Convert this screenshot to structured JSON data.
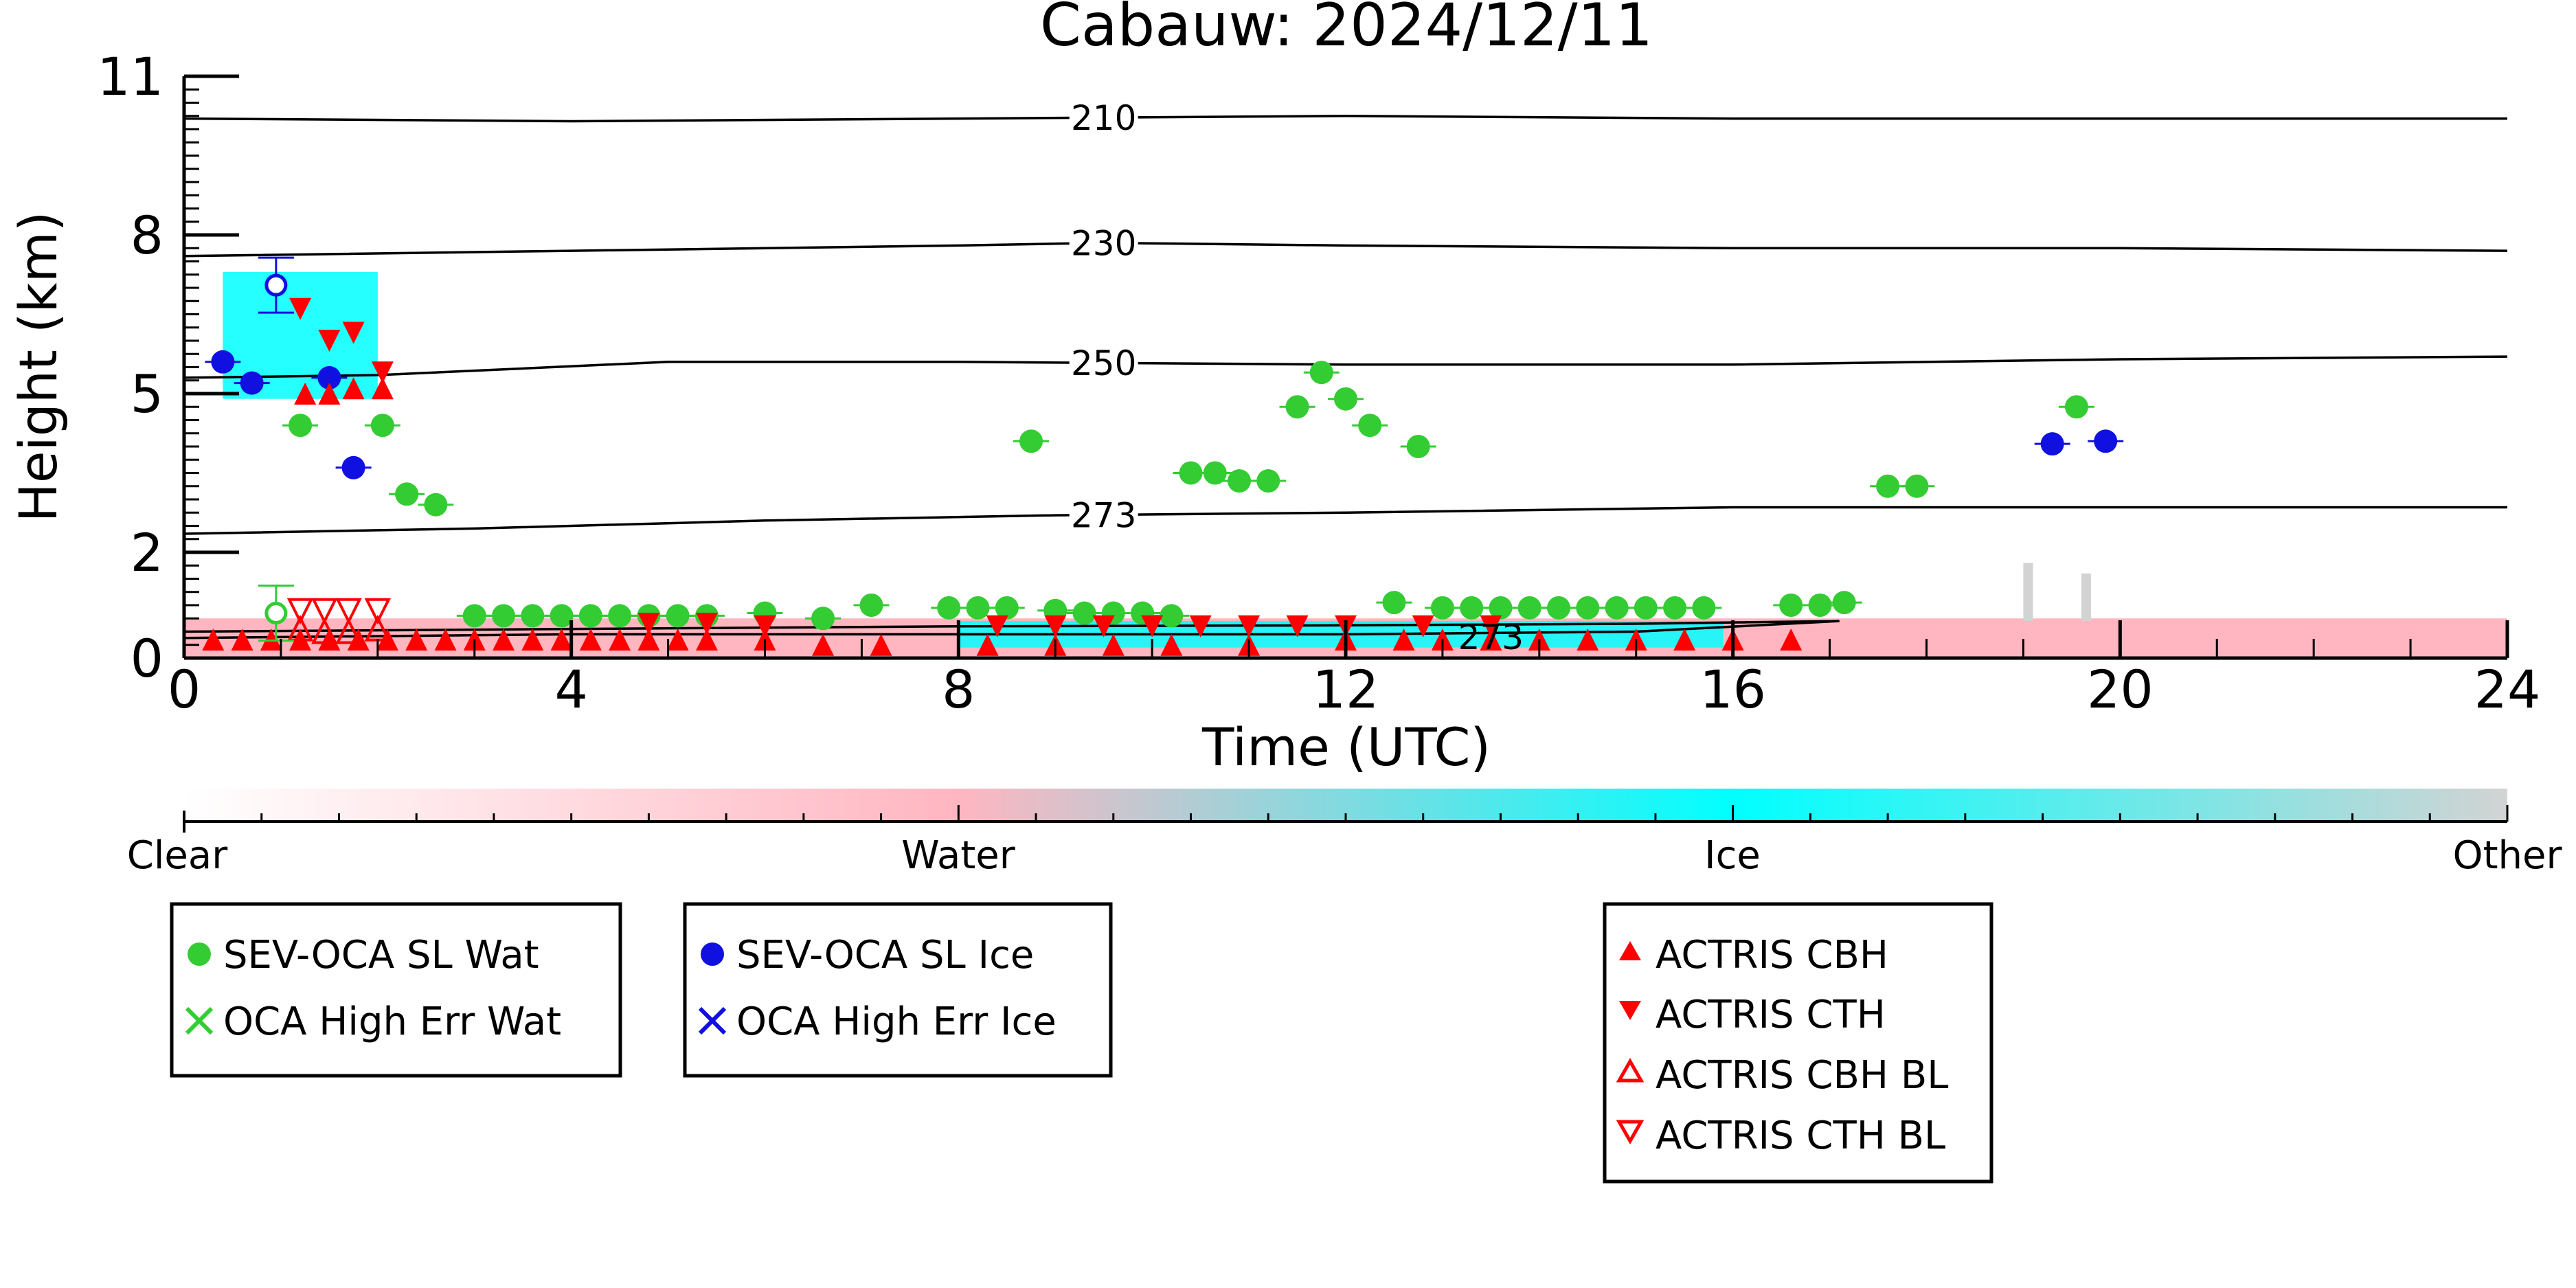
{
  "chart_data": {
    "type": "scatter",
    "title": "Cabauw: 2024/12/11",
    "xlabel": "Time (UTC)",
    "ylabel": "Height (km)",
    "xlim": [
      0,
      24
    ],
    "ylim": [
      0,
      11
    ],
    "xticks": [
      "0",
      "4",
      "8",
      "12",
      "16",
      "20",
      "24"
    ],
    "xtick_values": [
      0,
      4,
      8,
      12,
      16,
      20,
      24
    ],
    "yticks": [
      "0",
      "2",
      "5",
      "8",
      "11"
    ],
    "ytick_values": [
      0,
      2,
      5,
      8,
      11
    ],
    "contours": [
      {
        "label": "210",
        "points": [
          [
            0,
            10.2
          ],
          [
            4,
            10.15
          ],
          [
            8,
            10.2
          ],
          [
            12,
            10.25
          ],
          [
            16,
            10.2
          ],
          [
            20,
            10.2
          ],
          [
            24,
            10.2
          ]
        ]
      },
      {
        "label": "230",
        "points": [
          [
            0,
            7.6
          ],
          [
            4,
            7.7
          ],
          [
            8,
            7.8
          ],
          [
            9.5,
            7.85
          ],
          [
            12,
            7.8
          ],
          [
            16,
            7.75
          ],
          [
            20,
            7.75
          ],
          [
            24,
            7.7
          ]
        ]
      },
      {
        "label": "250",
        "points": [
          [
            0,
            5.3
          ],
          [
            2,
            5.35
          ],
          [
            5,
            5.6
          ],
          [
            8,
            5.6
          ],
          [
            12,
            5.55
          ],
          [
            16,
            5.55
          ],
          [
            20,
            5.65
          ],
          [
            24,
            5.7
          ]
        ]
      },
      {
        "label": "273",
        "points": [
          [
            0,
            2.35
          ],
          [
            3,
            2.45
          ],
          [
            6,
            2.6
          ],
          [
            9,
            2.7
          ],
          [
            12,
            2.75
          ],
          [
            16,
            2.85
          ],
          [
            20,
            2.85
          ],
          [
            24,
            2.85
          ]
        ]
      },
      {
        "label": "273",
        "points": [
          [
            0,
            0.5
          ],
          [
            4,
            0.55
          ],
          [
            8,
            0.6
          ],
          [
            12,
            0.62
          ],
          [
            15,
            0.65
          ],
          [
            17.1,
            0.7
          ],
          [
            15,
            0.5
          ],
          [
            12,
            0.45
          ],
          [
            8,
            0.45
          ],
          [
            4,
            0.45
          ],
          [
            0,
            0.38
          ]
        ]
      }
    ],
    "classification_bands": [
      {
        "class": "Water",
        "x0": 0,
        "x1": 24,
        "y0": 0,
        "y1": 0.75
      },
      {
        "class": "Ice",
        "x0": 8,
        "x1": 15.9,
        "y0": 0.2,
        "y1": 0.7
      },
      {
        "class": "Ice",
        "x0": 0.4,
        "x1": 2,
        "y0": 4.9,
        "y1": 7.3
      },
      {
        "class": "Other",
        "x0": 19.0,
        "x1": 19.1,
        "y0": 0.7,
        "y1": 1.8
      },
      {
        "class": "Other",
        "x0": 19.6,
        "x1": 19.7,
        "y0": 0.7,
        "y1": 1.6
      }
    ],
    "series": [
      {
        "name": "SEV-OCA SL Wat",
        "marker": "filled-circle",
        "color": "#33cc33",
        "points": [
          [
            1.2,
            4.4
          ],
          [
            2.05,
            4.4
          ],
          [
            2.3,
            3.1
          ],
          [
            2.6,
            2.9
          ],
          [
            8.75,
            4.1
          ],
          [
            10.4,
            3.5
          ],
          [
            10.65,
            3.5
          ],
          [
            10.9,
            3.35
          ],
          [
            11.2,
            3.35
          ],
          [
            11.5,
            4.75
          ],
          [
            11.75,
            5.4
          ],
          [
            12.0,
            4.9
          ],
          [
            12.25,
            4.4
          ],
          [
            12.75,
            4.0
          ],
          [
            17.6,
            3.25
          ],
          [
            17.9,
            3.25
          ],
          [
            19.55,
            4.75
          ],
          [
            3.0,
            0.8
          ],
          [
            3.3,
            0.8
          ],
          [
            3.6,
            0.8
          ],
          [
            3.9,
            0.8
          ],
          [
            4.2,
            0.8
          ],
          [
            4.5,
            0.8
          ],
          [
            4.8,
            0.8
          ],
          [
            5.1,
            0.8
          ],
          [
            5.4,
            0.8
          ],
          [
            6.0,
            0.85
          ],
          [
            6.6,
            0.75
          ],
          [
            7.1,
            1.0
          ],
          [
            7.9,
            0.95
          ],
          [
            8.2,
            0.95
          ],
          [
            8.5,
            0.95
          ],
          [
            9.0,
            0.9
          ],
          [
            9.3,
            0.85
          ],
          [
            9.6,
            0.85
          ],
          [
            9.9,
            0.85
          ],
          [
            10.2,
            0.8
          ],
          [
            12.5,
            1.05
          ],
          [
            13.0,
            0.95
          ],
          [
            13.3,
            0.95
          ],
          [
            13.6,
            0.95
          ],
          [
            13.9,
            0.95
          ],
          [
            14.2,
            0.95
          ],
          [
            14.5,
            0.95
          ],
          [
            14.8,
            0.95
          ],
          [
            15.1,
            0.95
          ],
          [
            15.4,
            0.95
          ],
          [
            15.7,
            0.95
          ],
          [
            16.6,
            1.0
          ],
          [
            16.9,
            1.0
          ],
          [
            17.15,
            1.05
          ]
        ]
      },
      {
        "name": "OCA High Err Wat",
        "marker": "x",
        "color": "#33cc33",
        "points": []
      },
      {
        "name": "SEV-OCA SL Ice",
        "marker": "filled-circle",
        "color": "#1010e0",
        "points": [
          [
            0.4,
            5.6
          ],
          [
            0.7,
            5.2
          ],
          [
            1.5,
            5.3
          ],
          [
            1.75,
            3.6
          ],
          [
            19.3,
            4.05
          ],
          [
            19.85,
            4.1
          ]
        ]
      },
      {
        "name": "OCA High Err Ice",
        "marker": "x",
        "color": "#1010e0",
        "points": []
      },
      {
        "name": "ACTRIS CBH",
        "marker": "filled-triangle-up",
        "color": "#ff0000",
        "points": [
          [
            0.3,
            0.35
          ],
          [
            0.6,
            0.35
          ],
          [
            0.9,
            0.35
          ],
          [
            1.2,
            0.35
          ],
          [
            1.5,
            0.35
          ],
          [
            1.8,
            0.35
          ],
          [
            2.1,
            0.35
          ],
          [
            2.4,
            0.35
          ],
          [
            2.7,
            0.35
          ],
          [
            3.0,
            0.35
          ],
          [
            3.3,
            0.35
          ],
          [
            3.6,
            0.35
          ],
          [
            3.9,
            0.35
          ],
          [
            4.2,
            0.35
          ],
          [
            4.5,
            0.35
          ],
          [
            4.8,
            0.35
          ],
          [
            5.1,
            0.35
          ],
          [
            5.4,
            0.35
          ],
          [
            6.0,
            0.35
          ],
          [
            6.6,
            0.25
          ],
          [
            7.2,
            0.25
          ],
          [
            8.3,
            0.25
          ],
          [
            9.0,
            0.25
          ],
          [
            9.6,
            0.25
          ],
          [
            10.2,
            0.25
          ],
          [
            11.0,
            0.25
          ],
          [
            12.0,
            0.35
          ],
          [
            12.6,
            0.35
          ],
          [
            13.0,
            0.35
          ],
          [
            13.5,
            0.35
          ],
          [
            14.0,
            0.35
          ],
          [
            14.5,
            0.35
          ],
          [
            15.0,
            0.35
          ],
          [
            15.5,
            0.35
          ],
          [
            16.0,
            0.35
          ],
          [
            16.6,
            0.35
          ],
          [
            1.25,
            5.0
          ],
          [
            1.5,
            5.0
          ],
          [
            1.75,
            5.1
          ],
          [
            2.05,
            5.1
          ]
        ]
      },
      {
        "name": "ACTRIS CTH",
        "marker": "filled-triangle-down",
        "color": "#ff0000",
        "points": [
          [
            1.2,
            6.6
          ],
          [
            1.5,
            6.0
          ],
          [
            1.75,
            6.15
          ],
          [
            2.05,
            5.4
          ],
          [
            4.8,
            0.65
          ],
          [
            5.4,
            0.65
          ],
          [
            6.0,
            0.6
          ],
          [
            8.4,
            0.6
          ],
          [
            9.0,
            0.6
          ],
          [
            9.5,
            0.6
          ],
          [
            10.0,
            0.6
          ],
          [
            10.5,
            0.6
          ],
          [
            11.0,
            0.6
          ],
          [
            11.5,
            0.6
          ],
          [
            12.0,
            0.6
          ],
          [
            12.8,
            0.6
          ],
          [
            13.5,
            0.6
          ]
        ]
      },
      {
        "name": "ACTRIS CBH BL",
        "marker": "open-triangle-up",
        "color": "#ff0000",
        "points": [
          [
            1.2,
            0.55
          ],
          [
            1.45,
            0.5
          ],
          [
            1.7,
            0.5
          ],
          [
            2.0,
            0.55
          ]
        ]
      },
      {
        "name": "ACTRIS CTH BL",
        "marker": "open-triangle-down",
        "color": "#ff0000",
        "points": [
          [
            1.2,
            0.9
          ],
          [
            1.45,
            0.9
          ],
          [
            1.7,
            0.9
          ],
          [
            2.0,
            0.9
          ]
        ]
      }
    ],
    "open_markers": [
      {
        "series": "SEV-OCA SL Ice",
        "points": [
          [
            0.95,
            7.05
          ]
        ]
      },
      {
        "series": "SEV-OCA SL Wat",
        "points": [
          [
            0.95,
            0.85
          ]
        ]
      }
    ],
    "colorbar": {
      "labels": [
        "Clear",
        "Water",
        "Ice",
        "Other"
      ],
      "colors": [
        "#ffffff",
        "#ffb6c1",
        "#00ffff",
        "#d3d3d3"
      ]
    },
    "legends": [
      {
        "entries": [
          "SEV-OCA SL Wat",
          "OCA High Err Wat"
        ]
      },
      {
        "entries": [
          "SEV-OCA SL Ice",
          "OCA High Err Ice"
        ]
      },
      {
        "entries": [
          "ACTRIS CBH",
          "ACTRIS CTH",
          "ACTRIS CBH BL",
          "ACTRIS CTH BL"
        ]
      }
    ],
    "grid": false
  }
}
